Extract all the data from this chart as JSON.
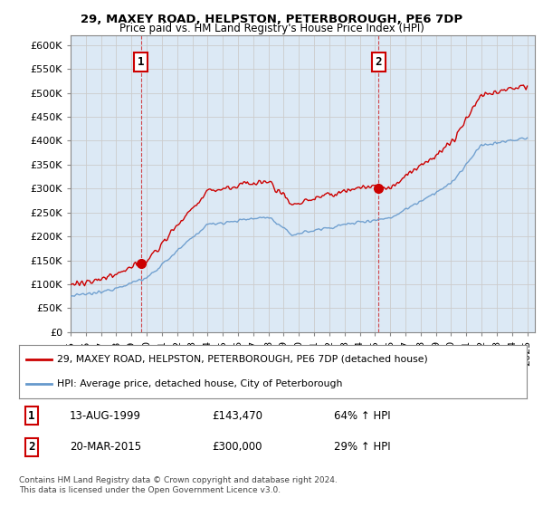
{
  "title1": "29, MAXEY ROAD, HELPSTON, PETERBOROUGH, PE6 7DP",
  "title2": "Price paid vs. HM Land Registry's House Price Index (HPI)",
  "ylim": [
    0,
    620000
  ],
  "yticks": [
    0,
    50000,
    100000,
    150000,
    200000,
    250000,
    300000,
    350000,
    400000,
    450000,
    500000,
    550000,
    600000
  ],
  "ytick_labels": [
    "£0",
    "£50K",
    "£100K",
    "£150K",
    "£200K",
    "£250K",
    "£300K",
    "£350K",
    "£400K",
    "£450K",
    "£500K",
    "£550K",
    "£600K"
  ],
  "hpi_color": "#6699cc",
  "price_color": "#cc0000",
  "plot_bg_color": "#dce9f5",
  "point1_date": 1999.617,
  "point1_price": 143470,
  "point1_label": "1",
  "point2_date": 2015.22,
  "point2_price": 300000,
  "point2_label": "2",
  "legend_line1": "29, MAXEY ROAD, HELPSTON, PETERBOROUGH, PE6 7DP (detached house)",
  "legend_line2": "HPI: Average price, detached house, City of Peterborough",
  "sale1_date": "13-AUG-1999",
  "sale1_price": "£143,470",
  "sale1_info": "64% ↑ HPI",
  "sale2_date": "20-MAR-2015",
  "sale2_price": "£300,000",
  "sale2_info": "29% ↑ HPI",
  "footnote": "Contains HM Land Registry data © Crown copyright and database right 2024.\nThis data is licensed under the Open Government Licence v3.0.",
  "background_color": "#ffffff",
  "grid_color": "#cccccc"
}
